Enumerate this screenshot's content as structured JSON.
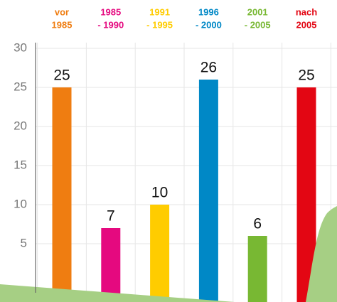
{
  "chart_data": {
    "type": "bar",
    "categories": [
      [
        "vor",
        "1985"
      ],
      [
        "1985",
        "- 1990"
      ],
      [
        "1991",
        "- 1995"
      ],
      [
        "1996",
        "- 2000"
      ],
      [
        "2001",
        "- 2005"
      ],
      [
        "nach",
        "2005"
      ]
    ],
    "series": [
      {
        "values": [
          25,
          7,
          10,
          26,
          6,
          25
        ],
        "colors": [
          "#ef7d11",
          "#e5097f",
          "#ffcc00",
          "#0088c6",
          "#78b833",
          "#e30613"
        ]
      }
    ],
    "ylim": [
      0,
      30
    ],
    "yticks": [
      5,
      10,
      15,
      20,
      25,
      30
    ],
    "grid": true
  }
}
